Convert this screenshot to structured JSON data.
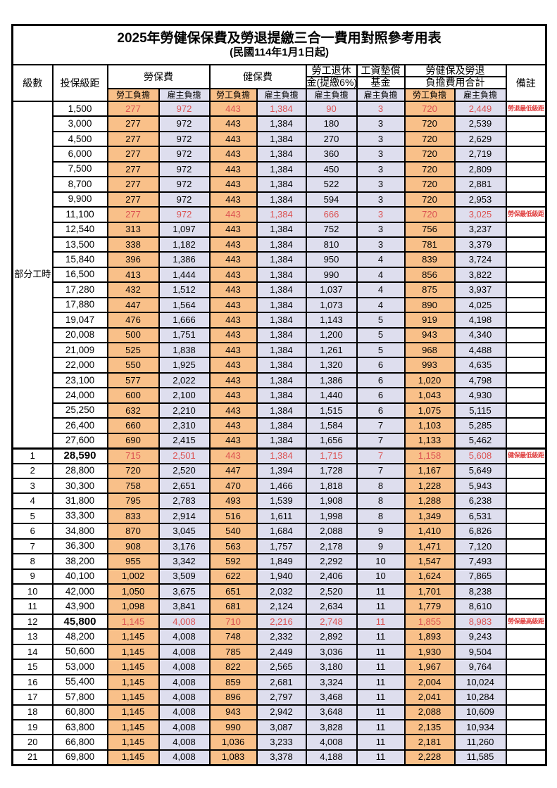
{
  "title": {
    "line1": "2025年勞健保保費及勞退提繳三合一費用對照參考用表",
    "line2": "(民國114年1月1日起)"
  },
  "colors": {
    "employee_column_bg": "#F9C089",
    "employer_column_bg": "#DEDEEE",
    "highlight_value_text": "#DB5252",
    "remark_text": "#E04242",
    "border": "#000000",
    "page_bg": "#FFFFFF"
  },
  "table": {
    "headers": {
      "level": "級數",
      "bracket": "投保級距",
      "labor_fee": "勞保費",
      "health_fee": "健保費",
      "pension_line1": "勞工退休",
      "pension_line2": "金(提繳6%)",
      "wage_fund_line1": "工資墊償",
      "wage_fund_line2": "基金",
      "total_line1": "勞健保及勞退",
      "total_line2": "負擔費用合計",
      "remark": "備註",
      "employee_share": "勞工負擔",
      "employer_share": "雇主負擔"
    },
    "group": {
      "label": "部分工時",
      "span": 23
    },
    "rows": [
      {
        "bracket": "1,500",
        "v": [
          "277",
          "972",
          "443",
          "1,384",
          "90",
          "3",
          "720",
          "2,449"
        ],
        "remark": "勞退最低級距",
        "red": true
      },
      {
        "bracket": "3,000",
        "v": [
          "277",
          "972",
          "443",
          "1,384",
          "180",
          "3",
          "720",
          "2,539"
        ]
      },
      {
        "bracket": "4,500",
        "v": [
          "277",
          "972",
          "443",
          "1,384",
          "270",
          "3",
          "720",
          "2,629"
        ]
      },
      {
        "bracket": "6,000",
        "v": [
          "277",
          "972",
          "443",
          "1,384",
          "360",
          "3",
          "720",
          "2,719"
        ]
      },
      {
        "bracket": "7,500",
        "v": [
          "277",
          "972",
          "443",
          "1,384",
          "450",
          "3",
          "720",
          "2,809"
        ]
      },
      {
        "bracket": "8,700",
        "v": [
          "277",
          "972",
          "443",
          "1,384",
          "522",
          "3",
          "720",
          "2,881"
        ]
      },
      {
        "bracket": "9,900",
        "v": [
          "277",
          "972",
          "443",
          "1,384",
          "594",
          "3",
          "720",
          "2,953"
        ]
      },
      {
        "bracket": "11,100",
        "v": [
          "277",
          "972",
          "443",
          "1,384",
          "666",
          "3",
          "720",
          "3,025"
        ],
        "remark": "勞保最低級距",
        "red": true
      },
      {
        "bracket": "12,540",
        "v": [
          "313",
          "1,097",
          "443",
          "1,384",
          "752",
          "3",
          "756",
          "3,237"
        ]
      },
      {
        "bracket": "13,500",
        "v": [
          "338",
          "1,182",
          "443",
          "1,384",
          "810",
          "3",
          "781",
          "3,379"
        ]
      },
      {
        "bracket": "15,840",
        "v": [
          "396",
          "1,386",
          "443",
          "1,384",
          "950",
          "4",
          "839",
          "3,724"
        ]
      },
      {
        "bracket": "16,500",
        "v": [
          "413",
          "1,444",
          "443",
          "1,384",
          "990",
          "4",
          "856",
          "3,822"
        ]
      },
      {
        "bracket": "17,280",
        "v": [
          "432",
          "1,512",
          "443",
          "1,384",
          "1,037",
          "4",
          "875",
          "3,937"
        ]
      },
      {
        "bracket": "17,880",
        "v": [
          "447",
          "1,564",
          "443",
          "1,384",
          "1,073",
          "4",
          "890",
          "4,025"
        ]
      },
      {
        "bracket": "19,047",
        "v": [
          "476",
          "1,666",
          "443",
          "1,384",
          "1,143",
          "5",
          "919",
          "4,198"
        ]
      },
      {
        "bracket": "20,008",
        "v": [
          "500",
          "1,751",
          "443",
          "1,384",
          "1,200",
          "5",
          "943",
          "4,340"
        ]
      },
      {
        "bracket": "21,009",
        "v": [
          "525",
          "1,838",
          "443",
          "1,384",
          "1,261",
          "5",
          "968",
          "4,488"
        ]
      },
      {
        "bracket": "22,000",
        "v": [
          "550",
          "1,925",
          "443",
          "1,384",
          "1,320",
          "6",
          "993",
          "4,635"
        ]
      },
      {
        "bracket": "23,100",
        "v": [
          "577",
          "2,022",
          "443",
          "1,384",
          "1,386",
          "6",
          "1,020",
          "4,798"
        ]
      },
      {
        "bracket": "24,000",
        "v": [
          "600",
          "2,100",
          "443",
          "1,384",
          "1,440",
          "6",
          "1,043",
          "4,930"
        ]
      },
      {
        "bracket": "25,250",
        "v": [
          "632",
          "2,210",
          "443",
          "1,384",
          "1,515",
          "6",
          "1,075",
          "5,115"
        ]
      },
      {
        "bracket": "26,400",
        "v": [
          "660",
          "2,310",
          "443",
          "1,384",
          "1,584",
          "7",
          "1,103",
          "5,285"
        ]
      },
      {
        "bracket": "27,600",
        "v": [
          "690",
          "2,415",
          "443",
          "1,384",
          "1,656",
          "7",
          "1,133",
          "5,462"
        ]
      },
      {
        "level": "1",
        "bracket": "28,590",
        "v": [
          "715",
          "2,501",
          "443",
          "1,384",
          "1,715",
          "7",
          "1,158",
          "5,608"
        ],
        "remark": "健保最低級距",
        "red": true,
        "bold": true,
        "sep": true
      },
      {
        "level": "2",
        "bracket": "28,800",
        "v": [
          "720",
          "2,520",
          "447",
          "1,394",
          "1,728",
          "7",
          "1,167",
          "5,649"
        ]
      },
      {
        "level": "3",
        "bracket": "30,300",
        "v": [
          "758",
          "2,651",
          "470",
          "1,466",
          "1,818",
          "8",
          "1,228",
          "5,943"
        ]
      },
      {
        "level": "4",
        "bracket": "31,800",
        "v": [
          "795",
          "2,783",
          "493",
          "1,539",
          "1,908",
          "8",
          "1,288",
          "6,238"
        ]
      },
      {
        "level": "5",
        "bracket": "33,300",
        "v": [
          "833",
          "2,914",
          "516",
          "1,611",
          "1,998",
          "8",
          "1,349",
          "6,531"
        ]
      },
      {
        "level": "6",
        "bracket": "34,800",
        "v": [
          "870",
          "3,045",
          "540",
          "1,684",
          "2,088",
          "9",
          "1,410",
          "6,826"
        ]
      },
      {
        "level": "7",
        "bracket": "36,300",
        "v": [
          "908",
          "3,176",
          "563",
          "1,757",
          "2,178",
          "9",
          "1,471",
          "7,120"
        ]
      },
      {
        "level": "8",
        "bracket": "38,200",
        "v": [
          "955",
          "3,342",
          "592",
          "1,849",
          "2,292",
          "10",
          "1,547",
          "7,493"
        ]
      },
      {
        "level": "9",
        "bracket": "40,100",
        "v": [
          "1,002",
          "3,509",
          "622",
          "1,940",
          "2,406",
          "10",
          "1,624",
          "7,865"
        ]
      },
      {
        "level": "10",
        "bracket": "42,000",
        "v": [
          "1,050",
          "3,675",
          "651",
          "2,032",
          "2,520",
          "11",
          "1,701",
          "8,238"
        ]
      },
      {
        "level": "11",
        "bracket": "43,900",
        "v": [
          "1,098",
          "3,841",
          "681",
          "2,124",
          "2,634",
          "11",
          "1,779",
          "8,610"
        ]
      },
      {
        "level": "12",
        "bracket": "45,800",
        "v": [
          "1,145",
          "4,008",
          "710",
          "2,216",
          "2,748",
          "11",
          "1,855",
          "8,983"
        ],
        "remark": "勞保最高級距",
        "red": true,
        "bold": true
      },
      {
        "level": "13",
        "bracket": "48,200",
        "v": [
          "1,145",
          "4,008",
          "748",
          "2,332",
          "2,892",
          "11",
          "1,893",
          "9,243"
        ]
      },
      {
        "level": "14",
        "bracket": "50,600",
        "v": [
          "1,145",
          "4,008",
          "785",
          "2,449",
          "3,036",
          "11",
          "1,930",
          "9,504"
        ]
      },
      {
        "level": "15",
        "bracket": "53,000",
        "v": [
          "1,145",
          "4,008",
          "822",
          "2,565",
          "3,180",
          "11",
          "1,967",
          "9,764"
        ]
      },
      {
        "level": "16",
        "bracket": "55,400",
        "v": [
          "1,145",
          "4,008",
          "859",
          "2,681",
          "3,324",
          "11",
          "2,004",
          "10,024"
        ]
      },
      {
        "level": "17",
        "bracket": "57,800",
        "v": [
          "1,145",
          "4,008",
          "896",
          "2,797",
          "3,468",
          "11",
          "2,041",
          "10,284"
        ]
      },
      {
        "level": "18",
        "bracket": "60,800",
        "v": [
          "1,145",
          "4,008",
          "943",
          "2,942",
          "3,648",
          "11",
          "2,088",
          "10,609"
        ]
      },
      {
        "level": "19",
        "bracket": "63,800",
        "v": [
          "1,145",
          "4,008",
          "990",
          "3,087",
          "3,828",
          "11",
          "2,135",
          "10,934"
        ]
      },
      {
        "level": "20",
        "bracket": "66,800",
        "v": [
          "1,145",
          "4,008",
          "1,036",
          "3,233",
          "4,008",
          "11",
          "2,181",
          "11,260"
        ]
      },
      {
        "level": "21",
        "bracket": "69,800",
        "v": [
          "1,145",
          "4,008",
          "1,083",
          "3,378",
          "4,188",
          "11",
          "2,228",
          "11,585"
        ]
      }
    ]
  }
}
